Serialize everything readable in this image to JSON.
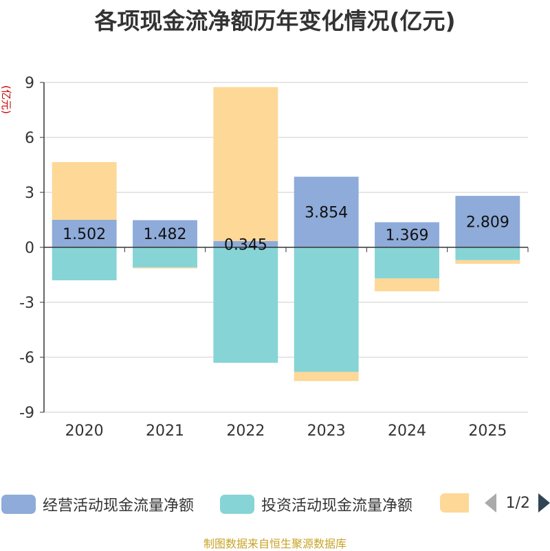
{
  "chart_data": {
    "type": "bar",
    "stacked": true,
    "title": "各项现金流净额历年变化情况(亿元)",
    "ylabel": "(亿元)",
    "xlabel": "",
    "categories": [
      "2020",
      "2021",
      "2022",
      "2023",
      "2024",
      "2025"
    ],
    "ylim": [
      -9,
      9
    ],
    "yticks": [
      9,
      6,
      3,
      0,
      -3,
      -6,
      -9
    ],
    "grid": true,
    "series": [
      {
        "name": "经营活动现金流量净额",
        "color": "#8eabd9",
        "values": [
          1.502,
          1.482,
          0.345,
          3.854,
          1.369,
          2.809
        ],
        "labels": [
          "1.502",
          "1.482",
          "0.345",
          "3.854",
          "1.369",
          "2.809"
        ]
      },
      {
        "name": "投资活动现金流量净额",
        "color": "#86d4d6",
        "values": [
          -1.8,
          -1.1,
          -6.3,
          -6.8,
          -1.7,
          -0.7
        ]
      },
      {
        "name": "",
        "color": "#fdd897",
        "values": [
          3.15,
          -0.05,
          8.4,
          -0.5,
          -0.7,
          -0.2
        ]
      }
    ],
    "legend_position": "bottom"
  },
  "legend": {
    "page": "1/2"
  },
  "source": "制图数据来自恒生聚源数据库"
}
